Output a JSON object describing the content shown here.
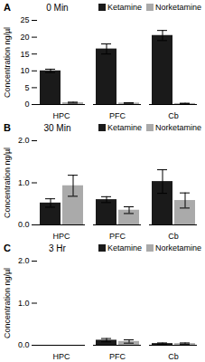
{
  "chart_data": [
    {
      "type": "bar",
      "title": "0 Min",
      "annotations": [
        "A"
      ],
      "categories": [
        "HPC",
        "PFC",
        "Cb"
      ],
      "series": [
        {
          "name": "Ketamine",
          "color": "#1a1a1a",
          "values": [
            10.0,
            16.5,
            20.5
          ],
          "errors": [
            0.5,
            1.5,
            1.5
          ]
        },
        {
          "name": "Norketamine",
          "color": "#aaaaaa",
          "values": [
            0.55,
            0.45,
            0.3
          ],
          "errors": [
            0.15,
            0.1,
            0.08
          ]
        }
      ],
      "y_label": "Concentration ng/µl",
      "ylim": [
        0,
        25
      ],
      "yticks": [
        0,
        5,
        10,
        15,
        20,
        25
      ],
      "legend": "upper right",
      "grid": false
    },
    {
      "type": "bar",
      "title": "30 Min",
      "annotations": [
        "B"
      ],
      "categories": [
        "HPC",
        "PFC",
        "Cb"
      ],
      "series": [
        {
          "name": "Ketamine",
          "color": "#1a1a1a",
          "values": [
            0.52,
            0.6,
            1.03
          ],
          "errors": [
            0.1,
            0.07,
            0.28
          ]
        },
        {
          "name": "Norketamine",
          "color": "#aaaaaa",
          "values": [
            0.93,
            0.35,
            0.58
          ],
          "errors": [
            0.25,
            0.08,
            0.18
          ]
        }
      ],
      "y_label": "Concentration ng/µl",
      "ylim": [
        0,
        2
      ],
      "yticks": [
        0,
        1,
        2
      ],
      "legend": "upper right",
      "grid": false
    },
    {
      "type": "bar",
      "title": "3 Hr",
      "annotations": [
        "C"
      ],
      "categories": [
        "HPC",
        "PFC",
        "Cb"
      ],
      "series": [
        {
          "name": "Ketamine",
          "color": "#1a1a1a",
          "values": [
            0.0,
            0.12,
            0.04
          ],
          "errors": [
            0.0,
            0.04,
            0.015
          ]
        },
        {
          "name": "Norketamine",
          "color": "#aaaaaa",
          "values": [
            0.0,
            0.09,
            0.04
          ],
          "errors": [
            0.0,
            0.04,
            0.015
          ]
        }
      ],
      "y_label": "Concentration ng/µl",
      "ylim": [
        0,
        2
      ],
      "yticks": [
        0,
        1,
        2
      ],
      "legend": "upper right",
      "grid": false
    }
  ]
}
